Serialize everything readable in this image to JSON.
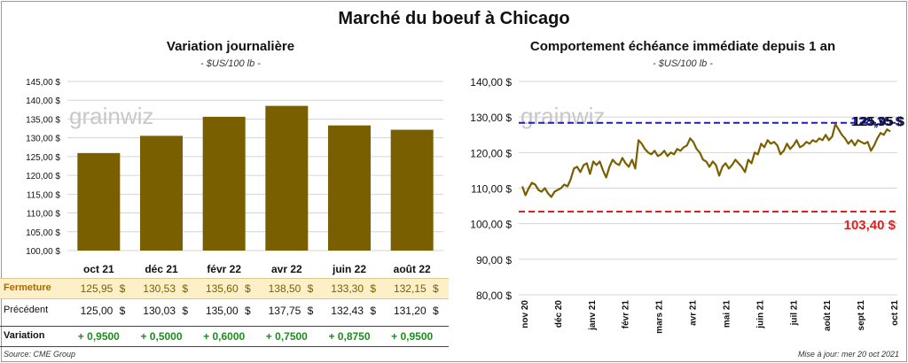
{
  "title": "Marché du boeuf à Chicago",
  "left": {
    "title": "Variation  journalière",
    "unit": "- $US/100 lb -",
    "watermark": "grainwiz",
    "rows": [
      {
        "label": "Fermeture",
        "values": [
          "125,95",
          "130,53",
          "135,60",
          "138,50",
          "133,30",
          "132,15"
        ],
        "currency": "$"
      },
      {
        "label": "Précédent",
        "values": [
          "125,00",
          "130,03",
          "135,00",
          "137,75",
          "132,43",
          "131,20"
        ],
        "currency": "$"
      },
      {
        "label": "Variation",
        "values": [
          "+ 0,9500",
          "+ 0,5000",
          "+ 0,6000",
          "+ 0,7500",
          "+ 0,8750",
          "+ 0,9500"
        ]
      }
    ]
  },
  "right": {
    "title": "Comportement  échéance immédiate depuis 1 an",
    "unit": "- $US/100 lb -",
    "watermark": "grainwiz",
    "label_high": "128,35 $",
    "label_last": "125,95 $",
    "label_low": "103,40 $"
  },
  "footer": {
    "source": "Source: CME Group",
    "update": "Mise à jour: mer 20 oct 2021"
  },
  "chart_data": [
    {
      "type": "bar",
      "categories": [
        "oct 21",
        "déc 21",
        "févr 22",
        "avr 22",
        "juin 22",
        "août 22"
      ],
      "values": [
        125.95,
        130.53,
        135.6,
        138.5,
        133.3,
        132.15
      ],
      "ylim": [
        100,
        145
      ],
      "yticks": [
        "100,00 $",
        "105,00 $",
        "110,00 $",
        "115,00 $",
        "120,00 $",
        "125,00 $",
        "130,00 $",
        "135,00 $",
        "140,00 $",
        "145,00 $"
      ],
      "grid": true,
      "color": "#7a5f00"
    },
    {
      "type": "line",
      "x_ticks": [
        "nov 20",
        "déc 20",
        "janv 21",
        "févr 21",
        "mars 21",
        "avr 21",
        "mai 21",
        "juin 21",
        "juil 21",
        "août 21",
        "sept 21",
        "oct 21"
      ],
      "ylim": [
        80,
        140
      ],
      "yticks": [
        "80,00 $",
        "90,00 $",
        "100,00 $",
        "110,00 $",
        "120,00 $",
        "130,00 $",
        "140,00 $"
      ],
      "grid": true,
      "high": 128.35,
      "low": 103.4,
      "last": 125.95,
      "series": [
        {
          "values": [
            110.5,
            108.0,
            110.0,
            111.5,
            111.0,
            109.5,
            109.0,
            110.0,
            108.5,
            107.5,
            109.0,
            109.5,
            110.0,
            111.0,
            110.5,
            112.5,
            115.5,
            116.0,
            114.5,
            116.5,
            117.0,
            114.0,
            117.5,
            116.5,
            117.5,
            115.0,
            113.0,
            116.0,
            118.0,
            117.0,
            116.5,
            118.5,
            117.0,
            116.0,
            118.0,
            115.5,
            123.5,
            122.5,
            121.0,
            120.0,
            119.5,
            120.5,
            119.0,
            119.5,
            120.5,
            119.0,
            120.0,
            119.5,
            121.0,
            120.5,
            121.5,
            122.0,
            124.0,
            123.0,
            121.0,
            120.0,
            118.0,
            117.5,
            116.0,
            117.5,
            116.5,
            113.5,
            116.0,
            117.0,
            115.5,
            116.5,
            118.0,
            117.0,
            116.0,
            114.5,
            118.0,
            117.0,
            120.0,
            119.5,
            122.5,
            121.5,
            123.5,
            122.5,
            123.0,
            122.0,
            119.5,
            120.5,
            122.5,
            121.0,
            122.0,
            123.5,
            121.5,
            122.0,
            123.0,
            122.5,
            123.5,
            123.0,
            124.0,
            123.5,
            125.0,
            123.5,
            124.5,
            128.0,
            126.5,
            125.0,
            124.0,
            122.5,
            123.5,
            122.0,
            123.5,
            123.0,
            122.5,
            123.0,
            120.5,
            122.0,
            124.0,
            125.5,
            125.0,
            126.5,
            125.95
          ]
        }
      ],
      "color": "#7a5f00"
    }
  ]
}
